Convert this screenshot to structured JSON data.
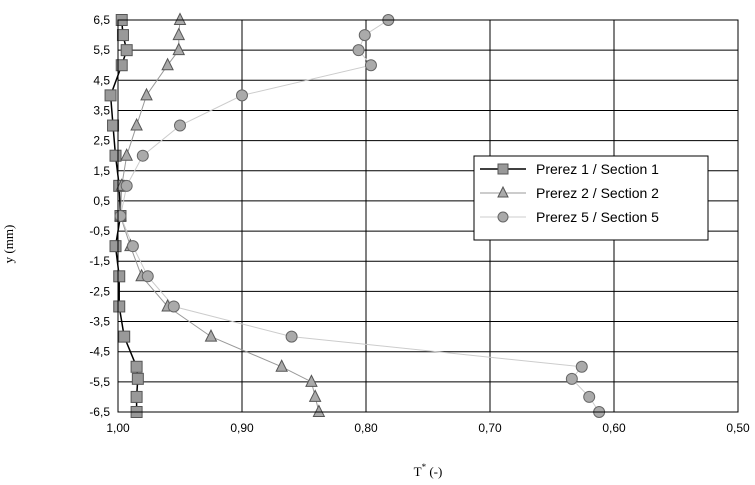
{
  "chart_data": {
    "type": "scatter",
    "xlabel": "T* (-)",
    "xlabel_main": "T",
    "xlabel_sup": "*",
    "xlabel_tail": " (-)",
    "ylabel": "y (mm)",
    "x_reversed": true,
    "xlim": [
      1.0,
      0.5
    ],
    "ylim": [
      -6.5,
      6.5
    ],
    "x_ticks": [
      1.0,
      0.9,
      0.8,
      0.7,
      0.6,
      0.5
    ],
    "x_tick_labels": [
      "1,00",
      "0,90",
      "0,80",
      "0,70",
      "0,60",
      "0,50"
    ],
    "y_ticks": [
      6.5,
      5.5,
      4.5,
      3.5,
      2.5,
      1.5,
      0.5,
      -0.5,
      -1.5,
      -2.5,
      -3.5,
      -4.5,
      -5.5,
      -6.5
    ],
    "y_tick_labels": [
      "6,5",
      "5,5",
      "4,5",
      "3,5",
      "2,5",
      "1,5",
      "0,5",
      "-0,5",
      "-1,5",
      "-2,5",
      "-3,5",
      "-4,5",
      "-5,5",
      "-6,5"
    ],
    "grid": "vertical and horizontal",
    "legend_position": "right",
    "series": [
      {
        "name": "Prerez 1 / Section 1",
        "marker": "square",
        "color": "#999999",
        "line_color": "#000000",
        "points": [
          {
            "x": 0.997,
            "y": 6.5
          },
          {
            "x": 0.996,
            "y": 6.0
          },
          {
            "x": 0.993,
            "y": 5.5
          },
          {
            "x": 0.997,
            "y": 5.0
          },
          {
            "x": 1.006,
            "y": 4.0
          },
          {
            "x": 1.004,
            "y": 3.0
          },
          {
            "x": 1.002,
            "y": 2.0
          },
          {
            "x": 0.999,
            "y": 1.0
          },
          {
            "x": 0.998,
            "y": 0.0
          },
          {
            "x": 1.002,
            "y": -1.0
          },
          {
            "x": 0.999,
            "y": -2.0
          },
          {
            "x": 0.999,
            "y": -3.0
          },
          {
            "x": 0.995,
            "y": -4.0
          },
          {
            "x": 0.985,
            "y": -5.0
          },
          {
            "x": 0.984,
            "y": -5.4
          },
          {
            "x": 0.985,
            "y": -6.0
          },
          {
            "x": 0.985,
            "y": -6.5
          }
        ]
      },
      {
        "name": "Prerez 2 / Section 2",
        "marker": "triangle",
        "color": "#aaaaaa",
        "line_color": "#999999",
        "points": [
          {
            "x": 0.95,
            "y": 6.5
          },
          {
            "x": 0.951,
            "y": 6.0
          },
          {
            "x": 0.951,
            "y": 5.5
          },
          {
            "x": 0.96,
            "y": 5.0
          },
          {
            "x": 0.977,
            "y": 4.0
          },
          {
            "x": 0.985,
            "y": 3.0
          },
          {
            "x": 0.993,
            "y": 2.0
          },
          {
            "x": 0.997,
            "y": 1.0
          },
          {
            "x": 0.998,
            "y": 0.0
          },
          {
            "x": 0.99,
            "y": -1.0
          },
          {
            "x": 0.981,
            "y": -2.0
          },
          {
            "x": 0.96,
            "y": -3.0
          },
          {
            "x": 0.925,
            "y": -4.0
          },
          {
            "x": 0.868,
            "y": -5.0
          },
          {
            "x": 0.844,
            "y": -5.5
          },
          {
            "x": 0.841,
            "y": -6.0
          },
          {
            "x": 0.838,
            "y": -6.5
          }
        ]
      },
      {
        "name": "Prerez 5 / Section 5",
        "marker": "circle",
        "color": "#aaaaaa",
        "line_color": "#cccccc",
        "points": [
          {
            "x": 0.782,
            "y": 6.5
          },
          {
            "x": 0.801,
            "y": 6.0
          },
          {
            "x": 0.806,
            "y": 5.5
          },
          {
            "x": 0.796,
            "y": 5.0
          },
          {
            "x": 0.9,
            "y": 4.0
          },
          {
            "x": 0.95,
            "y": 3.0
          },
          {
            "x": 0.98,
            "y": 2.0
          },
          {
            "x": 0.993,
            "y": 1.0
          },
          {
            "x": 0.998,
            "y": 0.0
          },
          {
            "x": 0.988,
            "y": -1.0
          },
          {
            "x": 0.976,
            "y": -2.0
          },
          {
            "x": 0.955,
            "y": -3.0
          },
          {
            "x": 0.86,
            "y": -4.0
          },
          {
            "x": 0.626,
            "y": -5.0
          },
          {
            "x": 0.634,
            "y": -5.4
          },
          {
            "x": 0.62,
            "y": -6.0
          },
          {
            "x": 0.612,
            "y": -6.5
          }
        ]
      }
    ]
  }
}
